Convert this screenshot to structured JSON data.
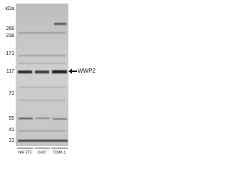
{
  "units": "kDa",
  "markers": [
    "268",
    "238",
    "171",
    "117",
    "71",
    "55",
    "41",
    "31"
  ],
  "target": "WWP2",
  "lanes": [
    "NIH 3T3",
    "CH27",
    "TCMK-1"
  ]
}
